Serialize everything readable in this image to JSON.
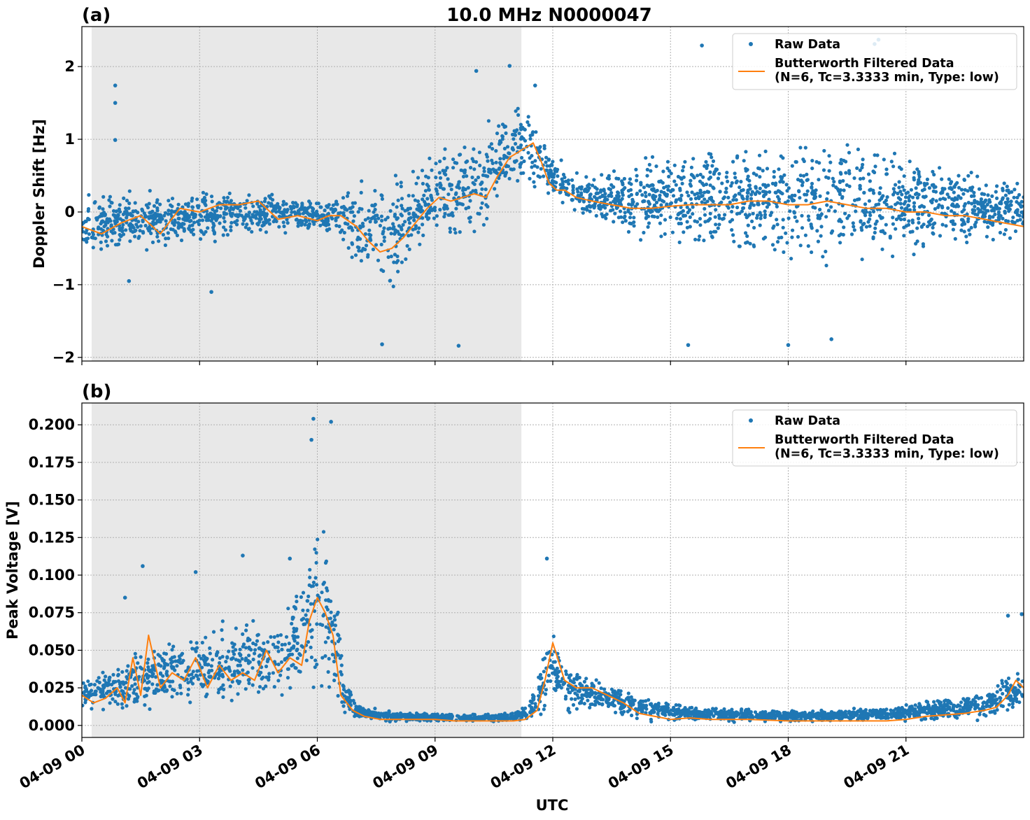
{
  "figure": {
    "title": "10.0 MHz N0000047",
    "xlabel": "UTC"
  },
  "colors": {
    "raw": "#1f77b4",
    "filtered": "#ff7f0e",
    "night_shading": "#e8e8e8",
    "grid": "#b0b0b0"
  },
  "chart_data": [
    {
      "type": "scatter",
      "panel_label": "(a)",
      "title": "10.0 MHz N0000047",
      "xlabel": "",
      "ylabel": "Doppler Shift [Hz]",
      "xlim": [
        0,
        24
      ],
      "ylim": [
        -2.05,
        2.55
      ],
      "x_ticks": [
        0,
        3,
        6,
        9,
        12,
        15,
        18,
        21
      ],
      "x_tick_labels": [
        "04-09 00",
        "04-09 03",
        "04-09 06",
        "04-09 09",
        "04-09 12",
        "04-09 15",
        "04-09 18",
        "04-09 21"
      ],
      "y_ticks": [
        -2,
        -1,
        0,
        1,
        2
      ],
      "y_tick_labels": [
        "−2",
        "−1",
        "0",
        "1",
        "2"
      ],
      "shaded_span": [
        0.25,
        11.2
      ],
      "grid": true,
      "legend": {
        "placement": "upper right",
        "entries": [
          "Raw Data",
          "Butterworth Filtered Data",
          "(N=6, Tc=3.3333 min, Type: low)"
        ]
      },
      "series": [
        {
          "name": "Raw Data",
          "style": "points",
          "envelope_x": [
            0,
            1,
            2,
            3,
            4,
            5,
            6,
            6.5,
            7,
            7.5,
            8,
            8.5,
            9,
            9.5,
            10,
            10.5,
            11,
            11.5,
            12,
            12.5,
            13,
            14,
            15,
            16,
            17,
            18,
            19,
            20,
            21,
            22,
            23,
            24
          ],
          "envelope_low": [
            -0.6,
            -0.6,
            -0.55,
            -0.5,
            -0.4,
            -0.35,
            -0.3,
            -0.4,
            -0.8,
            -1.1,
            -1.2,
            -0.9,
            -0.6,
            -0.6,
            -0.5,
            -0.3,
            0.2,
            0.3,
            0.1,
            -0.05,
            -0.2,
            -0.4,
            -0.6,
            -0.7,
            -0.8,
            -0.85,
            -0.85,
            -0.8,
            -0.7,
            -0.6,
            -0.5,
            -0.45
          ],
          "envelope_high": [
            0.3,
            0.35,
            0.3,
            0.35,
            0.4,
            0.3,
            0.2,
            0.3,
            0.5,
            0.6,
            0.7,
            0.8,
            1.0,
            1.2,
            1.3,
            1.5,
            1.6,
            1.4,
            0.9,
            0.6,
            0.6,
            0.8,
            0.9,
            1.0,
            1.1,
            1.15,
            1.15,
            1.1,
            0.9,
            0.8,
            0.6,
            0.5
          ],
          "outliers": [
            {
              "x": 0.85,
              "y": 1.74
            },
            {
              "x": 0.85,
              "y": 1.5
            },
            {
              "x": 0.85,
              "y": 0.99
            },
            {
              "x": 10.9,
              "y": 2.01
            },
            {
              "x": 10.05,
              "y": 1.94
            },
            {
              "x": 11.55,
              "y": 1.74
            },
            {
              "x": 15.8,
              "y": 2.29
            },
            {
              "x": 20.3,
              "y": 2.37
            },
            {
              "x": 20.2,
              "y": 2.31
            },
            {
              "x": 7.65,
              "y": -1.82
            },
            {
              "x": 9.6,
              "y": -1.84
            },
            {
              "x": 15.45,
              "y": -1.83
            },
            {
              "x": 18.0,
              "y": -1.83
            },
            {
              "x": 19.1,
              "y": -1.75
            },
            {
              "x": 3.3,
              "y": -1.1
            },
            {
              "x": 1.2,
              "y": -0.95
            }
          ]
        },
        {
          "name": "Butterworth Filtered Data",
          "style": "line",
          "x": [
            0,
            0.5,
            1,
            1.5,
            2,
            2.5,
            3,
            3.5,
            4,
            4.5,
            5,
            5.5,
            6,
            6.3,
            6.6,
            7.0,
            7.3,
            7.6,
            7.9,
            8.2,
            8.5,
            8.8,
            9.1,
            9.4,
            9.7,
            10.0,
            10.3,
            10.6,
            10.9,
            11.2,
            11.5,
            11.7,
            11.9,
            12.1,
            12.3,
            12.6,
            13.0,
            13.5,
            14,
            14.5,
            15,
            15.5,
            16,
            16.5,
            17,
            17.5,
            18,
            18.5,
            19,
            19.5,
            20,
            20.5,
            21,
            21.5,
            22,
            22.5,
            23,
            23.5,
            24
          ],
          "y": [
            -0.2,
            -0.3,
            -0.15,
            -0.05,
            -0.3,
            0.05,
            0.0,
            0.1,
            0.1,
            0.15,
            -0.1,
            -0.05,
            -0.12,
            -0.05,
            -0.05,
            -0.2,
            -0.4,
            -0.55,
            -0.5,
            -0.35,
            -0.15,
            0.05,
            0.2,
            0.15,
            0.2,
            0.25,
            0.2,
            0.5,
            0.75,
            0.85,
            0.95,
            0.7,
            0.4,
            0.3,
            0.3,
            0.2,
            0.15,
            0.1,
            0.05,
            0.05,
            0.08,
            0.1,
            0.1,
            0.1,
            0.15,
            0.15,
            0.1,
            0.1,
            0.15,
            0.1,
            0.05,
            0.05,
            0.0,
            0.0,
            -0.05,
            -0.05,
            -0.1,
            -0.15,
            -0.2
          ]
        }
      ]
    },
    {
      "type": "scatter",
      "panel_label": "(b)",
      "title": "",
      "xlabel": "UTC",
      "ylabel": "Peak Voltage [V]",
      "xlim": [
        0,
        24
      ],
      "ylim": [
        -0.008,
        0.2145
      ],
      "x_ticks": [
        0,
        3,
        6,
        9,
        12,
        15,
        18,
        21
      ],
      "x_tick_labels": [
        "04-09 00",
        "04-09 03",
        "04-09 06",
        "04-09 09",
        "04-09 12",
        "04-09 15",
        "04-09 18",
        "04-09 21"
      ],
      "y_ticks": [
        0.0,
        0.025,
        0.05,
        0.075,
        0.1,
        0.125,
        0.15,
        0.175,
        0.2
      ],
      "y_tick_labels": [
        "0.000",
        "0.025",
        "0.050",
        "0.075",
        "0.100",
        "0.125",
        "0.150",
        "0.175",
        "0.200"
      ],
      "shaded_span": [
        0.25,
        11.2
      ],
      "grid": true,
      "legend": {
        "placement": "upper right",
        "entries": [
          "Raw Data",
          "Butterworth Filtered Data",
          "(N=6, Tc=3.3333 min, Type: low)"
        ]
      },
      "series": [
        {
          "name": "Raw Data",
          "style": "points",
          "envelope_x": [
            0,
            0.5,
            1,
            1.5,
            2,
            2.5,
            3,
            3.5,
            4,
            4.5,
            5,
            5.5,
            5.8,
            6.0,
            6.2,
            6.4,
            6.7,
            7.0,
            7.5,
            8.0,
            9,
            10,
            11,
            11.4,
            11.7,
            11.9,
            12.2,
            12.6,
            13.0,
            13.5,
            14,
            14.5,
            15,
            16,
            17,
            18,
            19,
            20,
            21,
            21.5,
            22,
            22.5,
            23,
            23.5,
            24
          ],
          "envelope_low": [
            0.008,
            0.006,
            0.007,
            0.006,
            0.008,
            0.008,
            0.008,
            0.008,
            0.008,
            0.009,
            0.009,
            0.01,
            0.012,
            0.015,
            0.012,
            0.008,
            0.005,
            0.003,
            0.002,
            0.002,
            0.002,
            0.002,
            0.002,
            0.003,
            0.006,
            0.01,
            0.008,
            0.006,
            0.005,
            0.004,
            0.003,
            0.002,
            0.002,
            0.002,
            0.002,
            0.002,
            0.002,
            0.002,
            0.002,
            0.002,
            0.003,
            0.003,
            0.003,
            0.004,
            0.004
          ],
          "envelope_high": [
            0.032,
            0.04,
            0.045,
            0.055,
            0.06,
            0.065,
            0.07,
            0.075,
            0.075,
            0.08,
            0.085,
            0.1,
            0.12,
            0.16,
            0.15,
            0.12,
            0.035,
            0.015,
            0.012,
            0.01,
            0.009,
            0.008,
            0.009,
            0.015,
            0.045,
            0.07,
            0.05,
            0.04,
            0.035,
            0.03,
            0.025,
            0.02,
            0.016,
            0.013,
            0.012,
            0.011,
            0.011,
            0.012,
            0.015,
            0.018,
            0.02,
            0.022,
            0.025,
            0.035,
            0.045
          ],
          "outliers": [
            {
              "x": 5.9,
              "y": 0.204
            },
            {
              "x": 6.35,
              "y": 0.202
            },
            {
              "x": 5.85,
              "y": 0.19
            },
            {
              "x": 4.1,
              "y": 0.113
            },
            {
              "x": 5.3,
              "y": 0.111
            },
            {
              "x": 1.55,
              "y": 0.106
            },
            {
              "x": 2.9,
              "y": 0.102
            },
            {
              "x": 11.85,
              "y": 0.111
            },
            {
              "x": 1.1,
              "y": 0.085
            },
            {
              "x": 23.6,
              "y": 0.073
            },
            {
              "x": 23.95,
              "y": 0.074
            }
          ]
        },
        {
          "name": "Butterworth Filtered Data",
          "style": "line",
          "x": [
            0,
            0.3,
            0.6,
            0.9,
            1.1,
            1.3,
            1.5,
            1.7,
            2.0,
            2.3,
            2.6,
            2.9,
            3.2,
            3.5,
            3.8,
            4.1,
            4.4,
            4.7,
            5.0,
            5.3,
            5.6,
            5.8,
            6.0,
            6.2,
            6.4,
            6.6,
            6.9,
            7.2,
            7.6,
            8.0,
            8.5,
            9,
            9.5,
            10,
            10.5,
            11,
            11.3,
            11.6,
            11.8,
            12.0,
            12.3,
            12.6,
            13.0,
            13.4,
            13.8,
            14.2,
            14.6,
            15,
            15.5,
            16,
            17,
            18,
            19,
            20,
            20.5,
            21,
            21.5,
            22,
            22.5,
            23,
            23.3,
            23.6,
            23.8,
            24
          ],
          "y": [
            0.02,
            0.015,
            0.018,
            0.025,
            0.015,
            0.045,
            0.02,
            0.06,
            0.025,
            0.035,
            0.03,
            0.045,
            0.025,
            0.04,
            0.03,
            0.035,
            0.03,
            0.05,
            0.035,
            0.045,
            0.04,
            0.07,
            0.085,
            0.075,
            0.06,
            0.02,
            0.01,
            0.006,
            0.004,
            0.004,
            0.004,
            0.004,
            0.003,
            0.003,
            0.003,
            0.003,
            0.004,
            0.01,
            0.03,
            0.055,
            0.03,
            0.025,
            0.025,
            0.02,
            0.015,
            0.008,
            0.006,
            0.004,
            0.005,
            0.004,
            0.004,
            0.003,
            0.003,
            0.003,
            0.003,
            0.004,
            0.006,
            0.007,
            0.008,
            0.01,
            0.012,
            0.02,
            0.03,
            0.025
          ]
        }
      ]
    }
  ]
}
